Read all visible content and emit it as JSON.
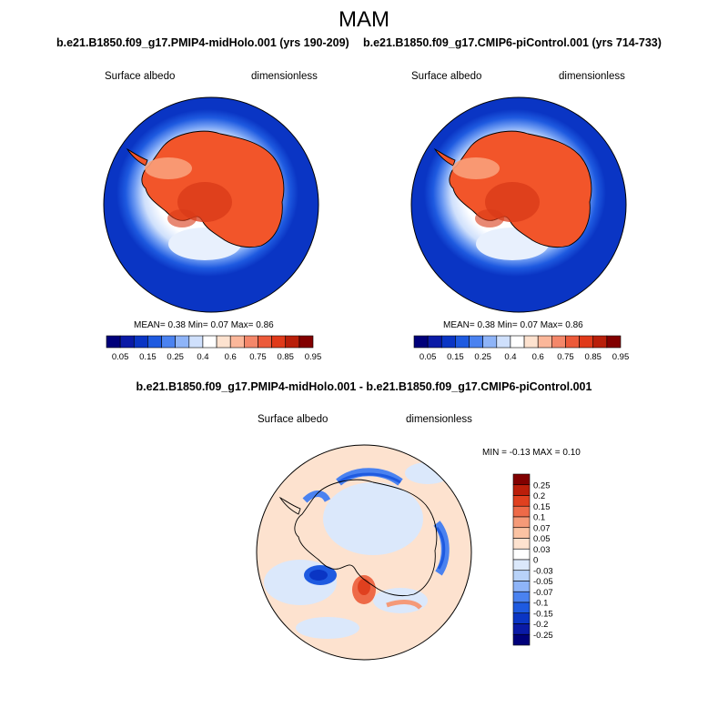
{
  "title": "MAM",
  "panels": [
    {
      "case_title": "b.e21.B1850.f09_g17.PMIP4-midHolo.001 (yrs 190-209)",
      "variable": "Surface albedo",
      "units": "dimensionless",
      "stats": "MEAN=   0.38  Min=   0.07  Max=   0.86",
      "colorbar_labels": [
        "0.05",
        "0.15",
        "0.25",
        "0.4",
        "0.6",
        "0.75",
        "0.85",
        "0.95"
      ]
    },
    {
      "case_title": "b.e21.B1850.f09_g17.CMIP6-piControl.001 (yrs 714-733)",
      "variable": "Surface albedo",
      "units": "dimensionless",
      "stats": "MEAN=   0.38  Min=   0.07  Max=   0.86",
      "colorbar_labels": [
        "0.05",
        "0.15",
        "0.25",
        "0.4",
        "0.6",
        "0.75",
        "0.85",
        "0.95"
      ]
    }
  ],
  "difference": {
    "title": "b.e21.B1850.f09_g17.PMIP4-midHolo.001 - b.e21.B1850.f09_g17.CMIP6-piControl.001",
    "variable": "Surface albedo",
    "units": "dimensionless",
    "stats": "MIN =  -0.13 MAX =   0.10",
    "colorbar_labels": [
      "0.25",
      "0.2",
      "0.15",
      "0.1",
      "0.07",
      "0.05",
      "0.03",
      "0",
      "-0.03",
      "-0.05",
      "-0.07",
      "-0.1",
      "-0.15",
      "-0.2",
      "-0.25"
    ]
  },
  "colors": {
    "abs_scale": [
      "#00007a",
      "#0a1aa6",
      "#0a35c4",
      "#1e5ae0",
      "#4a82f0",
      "#8eb4f8",
      "#cfe0fc",
      "#ffffff",
      "#fde2cf",
      "#fbb79a",
      "#f4876a",
      "#ec5a3a",
      "#e03a1a",
      "#b91f0a",
      "#820000"
    ],
    "diff_scale": [
      "#00007a",
      "#0a1aa6",
      "#0a35c4",
      "#1e5ae0",
      "#4a82f0",
      "#8eb4f8",
      "#b8d2f8",
      "#dbe8fb",
      "#ffffff",
      "#fde2cf",
      "#fbc3a3",
      "#f59a78",
      "#ee6a48",
      "#e0401f",
      "#bb1e0a",
      "#820000"
    ],
    "ocean": "#0a35c4",
    "ice": "#f2552a"
  }
}
